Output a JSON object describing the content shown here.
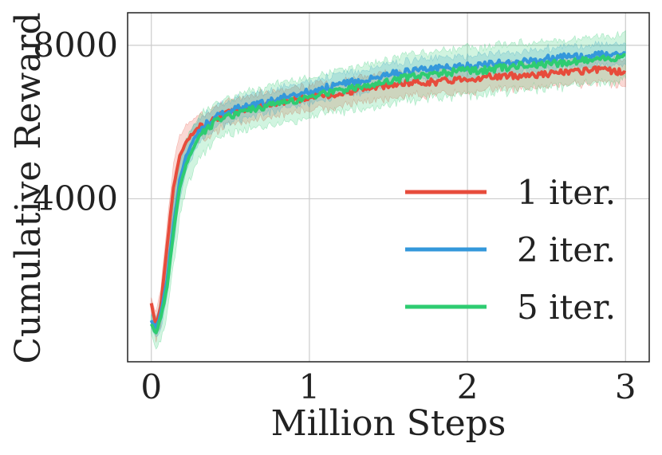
{
  "chart_data": {
    "type": "line",
    "title": "",
    "xlabel": "Million Steps",
    "ylabel": "Cumulative Reward",
    "xlim": [
      -0.15,
      3.15
    ],
    "ylim": [
      -250,
      8850
    ],
    "xticks": [
      0,
      1,
      2,
      3
    ],
    "xtick_labels": [
      "0",
      "1",
      "2",
      "3"
    ],
    "yticks": [
      4000,
      8000
    ],
    "ytick_labels": [
      "4000",
      "8000"
    ],
    "grid": true,
    "legend_position": "bottom-right",
    "series": [
      {
        "name": "1 iter.",
        "color": "#e74c3c",
        "x": [
          0,
          0.03,
          0.06,
          0.1,
          0.14,
          0.18,
          0.22,
          0.26,
          0.3,
          0.35,
          0.4,
          0.5,
          0.6,
          0.7,
          0.8,
          0.9,
          1.0,
          1.1,
          1.2,
          1.3,
          1.4,
          1.5,
          1.6,
          1.7,
          1.8,
          1.9,
          2.0,
          2.1,
          2.2,
          2.3,
          2.4,
          2.5,
          2.6,
          2.7,
          2.8,
          2.9,
          3.0
        ],
        "y": [
          1250,
          700,
          1200,
          2800,
          4300,
          5100,
          5500,
          5700,
          5850,
          5950,
          6100,
          6250,
          6350,
          6450,
          6500,
          6600,
          6650,
          6700,
          6750,
          6850,
          6900,
          6950,
          7000,
          7050,
          7050,
          7100,
          7150,
          7150,
          7200,
          7200,
          7250,
          7250,
          7300,
          7300,
          7350,
          7350,
          7300
        ],
        "band": [
          150,
          400,
          500,
          600,
          700,
          600,
          500,
          400,
          350,
          350,
          350,
          350,
          350,
          350,
          350,
          350,
          350,
          350,
          350,
          350,
          350,
          350,
          350,
          350,
          350,
          350,
          350,
          350,
          350,
          350,
          350,
          350,
          350,
          350,
          350,
          350,
          350
        ]
      },
      {
        "name": "2 iter.",
        "color": "#3498db",
        "x": [
          0,
          0.03,
          0.06,
          0.1,
          0.14,
          0.18,
          0.22,
          0.26,
          0.3,
          0.35,
          0.4,
          0.5,
          0.6,
          0.7,
          0.8,
          0.9,
          1.0,
          1.1,
          1.2,
          1.3,
          1.4,
          1.5,
          1.6,
          1.7,
          1.8,
          1.9,
          2.0,
          2.1,
          2.2,
          2.3,
          2.4,
          2.5,
          2.6,
          2.7,
          2.8,
          2.9,
          3.0
        ],
        "y": [
          800,
          650,
          1000,
          1900,
          3300,
          4500,
          5100,
          5500,
          5750,
          5950,
          6100,
          6300,
          6400,
          6500,
          6600,
          6700,
          6800,
          6900,
          7000,
          7050,
          7150,
          7250,
          7300,
          7350,
          7400,
          7450,
          7450,
          7500,
          7550,
          7550,
          7600,
          7650,
          7700,
          7700,
          7750,
          7800,
          7800
        ],
        "band": [
          200,
          300,
          400,
          500,
          600,
          500,
          450,
          400,
          350,
          300,
          300,
          300,
          300,
          300,
          300,
          300,
          300,
          300,
          300,
          300,
          300,
          300,
          300,
          300,
          300,
          300,
          300,
          300,
          300,
          300,
          300,
          300,
          300,
          300,
          300,
          300,
          300
        ]
      },
      {
        "name": "5 iter.",
        "color": "#2ecc71",
        "x": [
          0,
          0.03,
          0.06,
          0.1,
          0.14,
          0.18,
          0.22,
          0.26,
          0.3,
          0.35,
          0.4,
          0.5,
          0.6,
          0.7,
          0.8,
          0.9,
          1.0,
          1.1,
          1.2,
          1.3,
          1.4,
          1.5,
          1.6,
          1.7,
          1.8,
          1.9,
          2.0,
          2.1,
          2.2,
          2.3,
          2.4,
          2.5,
          2.6,
          2.7,
          2.8,
          2.9,
          3.0
        ],
        "y": [
          700,
          500,
          900,
          1700,
          3100,
          4300,
          4900,
          5300,
          5600,
          5800,
          6000,
          6150,
          6300,
          6350,
          6500,
          6550,
          6650,
          6750,
          6800,
          6900,
          7000,
          7050,
          7150,
          7200,
          7250,
          7300,
          7350,
          7350,
          7400,
          7450,
          7500,
          7500,
          7550,
          7600,
          7600,
          7650,
          7750
        ],
        "band": [
          250,
          400,
          600,
          800,
          900,
          800,
          700,
          650,
          600,
          550,
          500,
          500,
          550,
          550,
          600,
          600,
          550,
          550,
          600,
          600,
          650,
          650,
          650,
          650,
          650,
          650,
          650,
          650,
          650,
          650,
          650,
          650,
          650,
          650,
          650,
          650,
          650
        ]
      }
    ]
  }
}
